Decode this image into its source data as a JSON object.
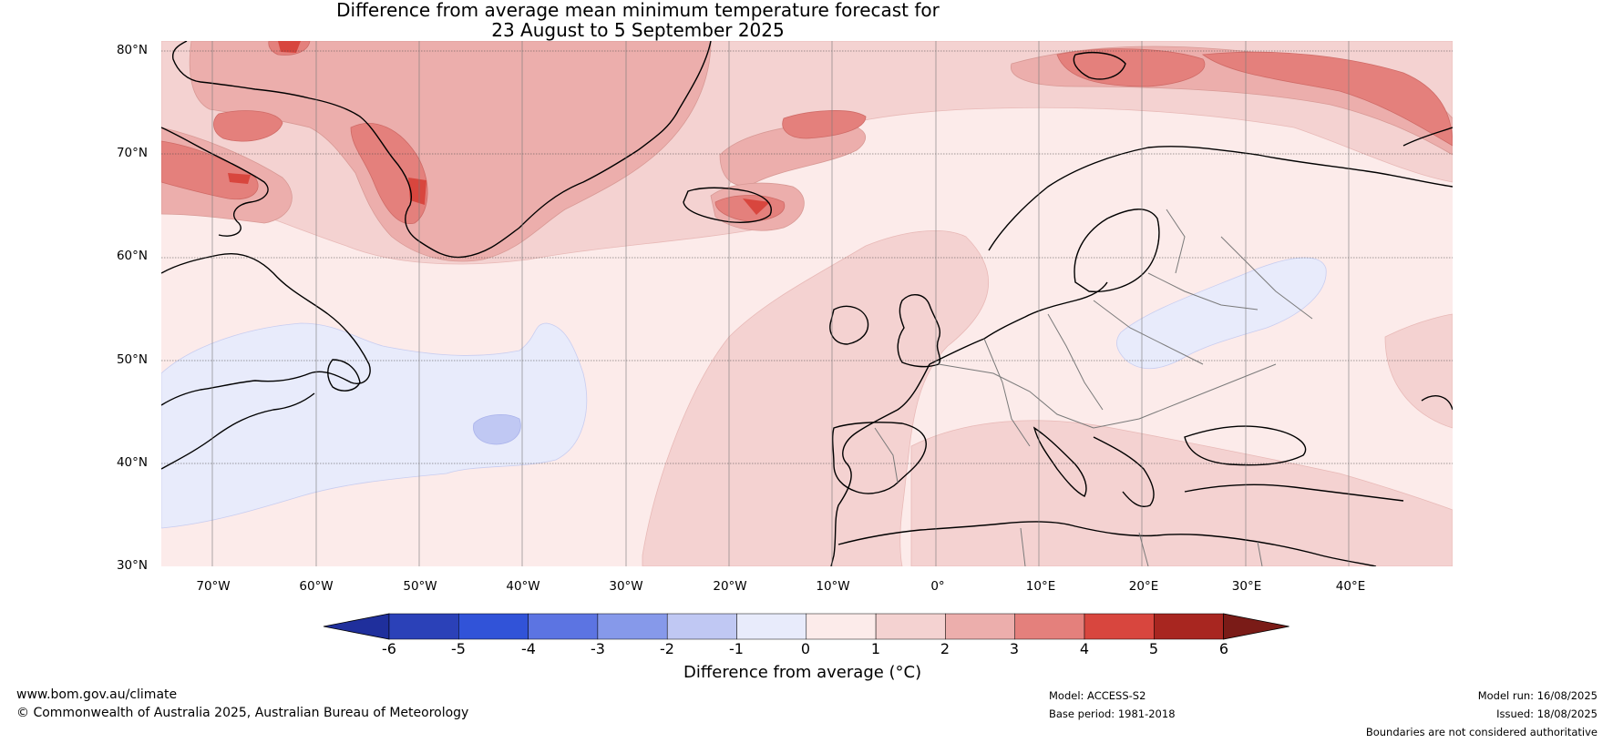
{
  "title": {
    "line1": "Difference from average mean minimum temperature forecast for",
    "line2": "23 August to 5 September 2025"
  },
  "map": {
    "lat_labels": [
      "80°N",
      "70°N",
      "60°N",
      "50°N",
      "40°N",
      "30°N"
    ],
    "lon_labels": [
      "70°W",
      "60°W",
      "50°W",
      "40°W",
      "30°W",
      "20°W",
      "10°W",
      "0°",
      "10°E",
      "20°E",
      "30°E",
      "40°E"
    ]
  },
  "colorbar": {
    "ticks": [
      "-6",
      "-5",
      "-4",
      "-3",
      "-2",
      "-1",
      "0",
      "1",
      "2",
      "3",
      "4",
      "5",
      "6"
    ],
    "colors": [
      "#1f2f9c",
      "#2b41b8",
      "#3153d8",
      "#5c74e2",
      "#8699ea",
      "#c0c8f3",
      "#e8ebfb",
      "#fcebea",
      "#f4d2d1",
      "#ecaeac",
      "#e4807c",
      "#d8463e",
      "#a82620",
      "#7a1b17"
    ],
    "label": "Difference from average (°C)"
  },
  "footer": {
    "website": "www.bom.gov.au/climate",
    "copyright": "© Commonwealth of Australia 2025, Australian Bureau of Meteorology",
    "model": "Model: ACCESS-S2",
    "base_period": "Base period: 1981-2018",
    "model_run": "Model run: 16/08/2025",
    "issued": "Issued: 18/08/2025",
    "disclaimer": "Boundaries are not considered authoritative"
  }
}
